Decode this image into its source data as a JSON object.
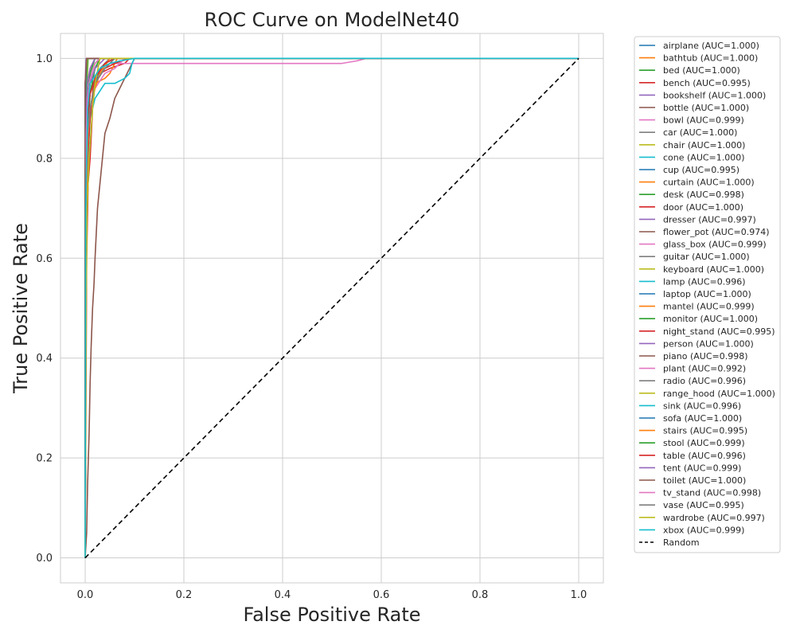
{
  "chart_data": {
    "type": "line",
    "title": "ROC Curve on ModelNet40",
    "xlabel": "False Positive Rate",
    "ylabel": "True Positive Rate",
    "xlim": [
      -0.05,
      1.05
    ],
    "ylim": [
      -0.05,
      1.05
    ],
    "xticks": [
      "0.0",
      "0.2",
      "0.4",
      "0.6",
      "0.8",
      "1.0"
    ],
    "yticks": [
      "0.0",
      "0.2",
      "0.4",
      "0.6",
      "0.8",
      "1.0"
    ],
    "grid": true,
    "legend_position": "outside-right",
    "series": [
      {
        "name": "airplane (AUC=1.000)",
        "color": "#1f77b4",
        "x": [
          0,
          0,
          0.003,
          1
        ],
        "y": [
          0,
          0.85,
          1,
          1
        ]
      },
      {
        "name": "bathtub (AUC=1.000)",
        "color": "#ff7f0e",
        "x": [
          0,
          0,
          0.005,
          1
        ],
        "y": [
          0,
          0.9,
          1,
          1
        ]
      },
      {
        "name": "bed (AUC=1.000)",
        "color": "#2ca02c",
        "x": [
          0,
          0,
          0.004,
          1
        ],
        "y": [
          0,
          0.88,
          1,
          1
        ]
      },
      {
        "name": "bench (AUC=0.995)",
        "color": "#d62728",
        "x": [
          0,
          0.003,
          0.006,
          0.01,
          0.015,
          0.02,
          0.03,
          0.05,
          0.08,
          0.09,
          1
        ],
        "y": [
          0,
          0.6,
          0.75,
          0.8,
          0.9,
          0.95,
          0.97,
          0.98,
          0.99,
          1,
          1
        ]
      },
      {
        "name": "bookshelf (AUC=1.000)",
        "color": "#9467bd",
        "x": [
          0,
          0,
          0.004,
          1
        ],
        "y": [
          0,
          0.92,
          1,
          1
        ]
      },
      {
        "name": "bottle (AUC=1.000)",
        "color": "#8c564b",
        "x": [
          0,
          0,
          0.005,
          1
        ],
        "y": [
          0,
          0.9,
          1,
          1
        ]
      },
      {
        "name": "bowl (AUC=0.999)",
        "color": "#e377c2",
        "x": [
          0,
          0,
          0.01,
          0.03,
          0.05,
          0.1,
          0.2,
          0.4,
          0.52,
          0.55,
          0.57,
          1
        ],
        "y": [
          0,
          0.85,
          0.95,
          0.98,
          0.99,
          0.99,
          0.99,
          0.99,
          0.99,
          0.995,
          1,
          1
        ]
      },
      {
        "name": "car (AUC=1.000)",
        "color": "#7f7f7f",
        "x": [
          0,
          0,
          0.004,
          1
        ],
        "y": [
          0,
          0.88,
          1,
          1
        ]
      },
      {
        "name": "chair (AUC=1.000)",
        "color": "#bcbd22",
        "x": [
          0,
          0,
          0.006,
          1
        ],
        "y": [
          0,
          0.86,
          1,
          1
        ]
      },
      {
        "name": "cone (AUC=1.000)",
        "color": "#17becf",
        "x": [
          0,
          0,
          0.005,
          1
        ],
        "y": [
          0,
          0.87,
          1,
          1
        ]
      },
      {
        "name": "cup (AUC=0.995)",
        "color": "#1f77b4",
        "x": [
          0,
          0.002,
          0.005,
          0.01,
          0.02,
          0.03,
          0.05,
          1
        ],
        "y": [
          0,
          0.7,
          0.8,
          0.9,
          0.95,
          0.98,
          1,
          1
        ]
      },
      {
        "name": "curtain (AUC=1.000)",
        "color": "#ff7f0e",
        "x": [
          0,
          0,
          0.004,
          1
        ],
        "y": [
          0,
          0.9,
          1,
          1
        ]
      },
      {
        "name": "desk (AUC=0.998)",
        "color": "#2ca02c",
        "x": [
          0,
          0.002,
          0.005,
          0.01,
          0.02,
          0.03,
          1
        ],
        "y": [
          0,
          0.75,
          0.85,
          0.93,
          0.98,
          1,
          1
        ]
      },
      {
        "name": "door (AUC=1.000)",
        "color": "#d62728",
        "x": [
          0,
          0,
          0.003,
          1
        ],
        "y": [
          0,
          0.9,
          1,
          1
        ]
      },
      {
        "name": "dresser (AUC=0.997)",
        "color": "#9467bd",
        "x": [
          0,
          0.002,
          0.005,
          0.01,
          0.02,
          0.04,
          1
        ],
        "y": [
          0,
          0.8,
          0.9,
          0.95,
          0.98,
          1,
          1
        ]
      },
      {
        "name": "flower_pot (AUC=0.974)",
        "color": "#8c564b",
        "x": [
          0,
          0.003,
          0.005,
          0.008,
          0.01,
          0.012,
          0.015,
          0.018,
          0.02,
          0.025,
          0.03,
          0.035,
          0.04,
          0.05,
          0.06,
          0.07,
          0.08,
          0.09,
          0.1,
          1
        ],
        "y": [
          0,
          0.05,
          0.15,
          0.25,
          0.35,
          0.42,
          0.5,
          0.55,
          0.6,
          0.7,
          0.75,
          0.8,
          0.85,
          0.88,
          0.92,
          0.94,
          0.96,
          0.98,
          1,
          1
        ]
      },
      {
        "name": "glass_box (AUC=0.999)",
        "color": "#e377c2",
        "x": [
          0,
          0.001,
          0.004,
          0.01,
          0.02,
          1
        ],
        "y": [
          0,
          0.85,
          0.95,
          0.98,
          1,
          1
        ]
      },
      {
        "name": "guitar (AUC=1.000)",
        "color": "#7f7f7f",
        "x": [
          0,
          0,
          0.003,
          1
        ],
        "y": [
          0,
          0.95,
          1,
          1
        ]
      },
      {
        "name": "keyboard (AUC=1.000)",
        "color": "#bcbd22",
        "x": [
          0,
          0,
          0.004,
          1
        ],
        "y": [
          0,
          0.9,
          1,
          1
        ]
      },
      {
        "name": "lamp (AUC=0.996)",
        "color": "#17becf",
        "x": [
          0,
          0.002,
          0.006,
          0.01,
          0.02,
          0.04,
          0.06,
          0.07,
          0.08,
          0.09,
          0.095,
          0.1,
          1
        ],
        "y": [
          0,
          0.7,
          0.8,
          0.88,
          0.92,
          0.95,
          0.95,
          0.955,
          0.96,
          0.97,
          0.99,
          1,
          1
        ]
      },
      {
        "name": "laptop (AUC=1.000)",
        "color": "#1f77b4",
        "x": [
          0,
          0,
          0.003,
          1
        ],
        "y": [
          0,
          0.93,
          1,
          1
        ]
      },
      {
        "name": "mantel (AUC=0.999)",
        "color": "#ff7f0e",
        "x": [
          0,
          0.002,
          0.005,
          0.02,
          0.04,
          0.05,
          0.06,
          0.065,
          1
        ],
        "y": [
          0,
          0.85,
          0.92,
          0.95,
          0.96,
          0.97,
          0.99,
          1,
          1
        ]
      },
      {
        "name": "monitor (AUC=1.000)",
        "color": "#2ca02c",
        "x": [
          0,
          0,
          0.005,
          1
        ],
        "y": [
          0,
          0.9,
          1,
          1
        ]
      },
      {
        "name": "night_stand (AUC=0.995)",
        "color": "#d62728",
        "x": [
          0,
          0.002,
          0.005,
          0.01,
          0.015,
          0.02,
          0.04,
          0.06,
          0.09,
          1
        ],
        "y": [
          0,
          0.7,
          0.8,
          0.88,
          0.93,
          0.96,
          0.98,
          0.99,
          1,
          1
        ]
      },
      {
        "name": "person (AUC=1.000)",
        "color": "#9467bd",
        "x": [
          0,
          0,
          0.002,
          1
        ],
        "y": [
          0,
          0.95,
          1,
          1
        ]
      },
      {
        "name": "piano (AUC=0.998)",
        "color": "#8c564b",
        "x": [
          0,
          0.002,
          0.005,
          0.01,
          0.02,
          0.03,
          1
        ],
        "y": [
          0,
          0.85,
          0.92,
          0.96,
          0.99,
          1,
          1
        ]
      },
      {
        "name": "plant (AUC=0.992)",
        "color": "#e377c2",
        "x": [
          0,
          0.002,
          0.006,
          0.01,
          0.02,
          0.04,
          0.06,
          0.08,
          1
        ],
        "y": [
          0,
          0.75,
          0.85,
          0.9,
          0.94,
          0.97,
          0.98,
          1,
          1
        ]
      },
      {
        "name": "radio (AUC=0.996)",
        "color": "#7f7f7f",
        "x": [
          0,
          0.002,
          0.005,
          0.01,
          0.02,
          0.03,
          0.05,
          1
        ],
        "y": [
          0,
          0.8,
          0.88,
          0.93,
          0.96,
          0.98,
          1,
          1
        ]
      },
      {
        "name": "range_hood (AUC=1.000)",
        "color": "#bcbd22",
        "x": [
          0,
          0,
          0.004,
          1
        ],
        "y": [
          0,
          0.92,
          1,
          1
        ]
      },
      {
        "name": "sink (AUC=0.996)",
        "color": "#17becf",
        "x": [
          0,
          0.002,
          0.005,
          0.01,
          0.02,
          0.04,
          0.06,
          1
        ],
        "y": [
          0,
          0.85,
          0.9,
          0.93,
          0.96,
          0.98,
          1,
          1
        ]
      },
      {
        "name": "sofa (AUC=1.000)",
        "color": "#1f77b4",
        "x": [
          0,
          0,
          0.003,
          1
        ],
        "y": [
          0,
          0.92,
          1,
          1
        ]
      },
      {
        "name": "stairs (AUC=0.995)",
        "color": "#ff7f0e",
        "x": [
          0,
          0.002,
          0.006,
          0.01,
          0.015,
          0.02,
          0.03,
          0.05,
          1
        ],
        "y": [
          0,
          0.7,
          0.85,
          0.9,
          0.92,
          0.94,
          0.97,
          1,
          1
        ]
      },
      {
        "name": "stool (AUC=0.999)",
        "color": "#2ca02c",
        "x": [
          0,
          0.002,
          0.005,
          0.01,
          0.02,
          1
        ],
        "y": [
          0,
          0.85,
          0.92,
          0.97,
          1,
          1
        ]
      },
      {
        "name": "table (AUC=0.996)",
        "color": "#d62728",
        "x": [
          0,
          0.002,
          0.005,
          0.01,
          0.02,
          0.04,
          0.06,
          1
        ],
        "y": [
          0,
          0.8,
          0.88,
          0.93,
          0.96,
          0.99,
          1,
          1
        ]
      },
      {
        "name": "tent (AUC=0.999)",
        "color": "#9467bd",
        "x": [
          0,
          0.002,
          0.005,
          0.01,
          0.02,
          1
        ],
        "y": [
          0,
          0.9,
          0.95,
          0.98,
          1,
          1
        ]
      },
      {
        "name": "toilet (AUC=1.000)",
        "color": "#8c564b",
        "x": [
          0,
          0,
          0.003,
          1
        ],
        "y": [
          0,
          0.95,
          1,
          1
        ]
      },
      {
        "name": "tv_stand (AUC=0.998)",
        "color": "#e377c2",
        "x": [
          0,
          0.002,
          0.005,
          0.01,
          0.02,
          0.03,
          1
        ],
        "y": [
          0,
          0.85,
          0.92,
          0.96,
          0.99,
          1,
          1
        ]
      },
      {
        "name": "vase (AUC=0.995)",
        "color": "#7f7f7f",
        "x": [
          0,
          0.002,
          0.005,
          0.01,
          0.02,
          0.04,
          0.06,
          1
        ],
        "y": [
          0,
          0.75,
          0.85,
          0.9,
          0.95,
          0.98,
          1,
          1
        ]
      },
      {
        "name": "wardrobe (AUC=0.997)",
        "color": "#bcbd22",
        "x": [
          0,
          0.002,
          0.004,
          0.008,
          0.015,
          0.02,
          0.03,
          1
        ],
        "y": [
          0,
          0.5,
          0.7,
          0.8,
          0.9,
          0.95,
          1,
          1
        ]
      },
      {
        "name": "xbox (AUC=0.999)",
        "color": "#17becf",
        "x": [
          0,
          0.001,
          0.005,
          0.01,
          0.03,
          0.05,
          0.07,
          0.1,
          1
        ],
        "y": [
          0,
          0.7,
          0.9,
          0.95,
          0.98,
          0.99,
          0.995,
          1,
          1
        ]
      },
      {
        "name": "Random",
        "color": "#000000",
        "dashed": true,
        "x": [
          0,
          1
        ],
        "y": [
          0,
          1
        ]
      }
    ]
  }
}
